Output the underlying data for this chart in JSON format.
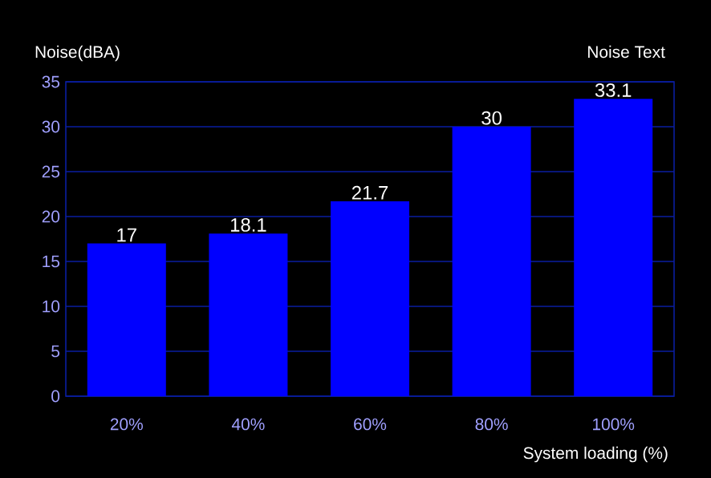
{
  "chart_data": {
    "type": "bar",
    "title": "Noise Text",
    "ylabel": "Noise(dBA)",
    "xlabel": "System loading (%)",
    "categories": [
      "20%",
      "40%",
      "60%",
      "80%",
      "100%"
    ],
    "values": [
      17,
      18.1,
      21.7,
      30,
      33.1
    ],
    "color": "#0000ff",
    "ylim": [
      0,
      35
    ],
    "yticks": [
      0,
      5,
      10,
      15,
      20,
      25,
      30,
      35
    ],
    "grid": "y",
    "data_labels": true
  }
}
